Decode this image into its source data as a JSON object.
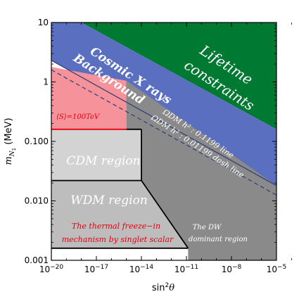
{
  "chart_data": {
    "type": "area",
    "xlabel": "sin²θ",
    "ylabel": "m_N1 (MeV)",
    "x_scale": "log",
    "y_scale": "log",
    "xlim": [
      1e-20,
      1e-05
    ],
    "ylim": [
      0.001,
      10
    ],
    "x_ticks": [
      {
        "value": 1e-20,
        "base": "10",
        "exp": "−20"
      },
      {
        "value": 1e-17,
        "base": "10",
        "exp": "−17"
      },
      {
        "value": 1e-14,
        "base": "10",
        "exp": "−14"
      },
      {
        "value": 1e-11,
        "base": "10",
        "exp": "−11"
      },
      {
        "value": 1e-08,
        "base": "10",
        "exp": "−8"
      },
      {
        "value": 1e-05,
        "base": "10",
        "exp": "−5"
      }
    ],
    "y_ticks": [
      {
        "value": 10,
        "label": "10"
      },
      {
        "value": 1,
        "label": "1"
      },
      {
        "value": 0.1,
        "label": "0.100"
      },
      {
        "value": 0.01,
        "label": "0.010"
      },
      {
        "value": 0.001,
        "label": "0.001"
      }
    ],
    "regions": [
      {
        "name": "Lifetime constraints",
        "color": "#007a33",
        "polygon": [
          [
            1e-18,
            10
          ],
          [
            1e-05,
            10
          ],
          [
            1e-05,
            0.16
          ]
        ]
      },
      {
        "name": "Cosmic X rays Background",
        "color": "#5a6fc0",
        "polygon": [
          [
            1e-20,
            10
          ],
          [
            1e-18,
            10
          ],
          [
            1e-05,
            0.16
          ],
          [
            1e-05,
            0.018
          ],
          [
            1e-20,
            2.3
          ]
        ]
      },
      {
        "name": "(S)=100TeV",
        "color": "#f5929a",
        "polygon": [
          [
            1e-20,
            0.16
          ],
          [
            1e-15,
            0.16
          ],
          [
            1e-15,
            1.05
          ],
          [
            1e-20,
            1.78
          ]
        ]
      },
      {
        "name": "CDM region",
        "color": "#d3d3d3",
        "polygon": [
          [
            1e-20,
            0.022
          ],
          [
            1e-14,
            0.022
          ],
          [
            1e-14,
            0.16
          ],
          [
            1e-20,
            0.16
          ]
        ]
      },
      {
        "name": "WDM region",
        "color": "#bdbdbd",
        "polygon": [
          [
            1e-20,
            0.0016
          ],
          [
            1.3e-11,
            0.0016
          ],
          [
            1e-14,
            0.022
          ],
          [
            1e-20,
            0.022
          ]
        ]
      },
      {
        "name": "The DW dominant region",
        "color": "#8a8a8a",
        "polygon": [
          [
            1.3e-11,
            0.0016
          ],
          [
            1e-14,
            0.022
          ],
          [
            1e-14,
            0.16
          ],
          [
            1e-15,
            0.16
          ],
          [
            1e-15,
            1.05
          ],
          [
            1e-05,
            0.018
          ],
          [
            1e-05,
            0.001
          ],
          [
            1.3e-11,
            0.001
          ]
        ]
      }
    ],
    "lines": [
      {
        "name": "Omega_DM h2 = 0.1199 line",
        "style": "solid",
        "points": [
          [
            1e-20,
            2.3
          ],
          [
            1e-05,
            0.018
          ]
        ]
      },
      {
        "name": "Omega_DM h2 = 0.01199 dash line",
        "style": "dashed",
        "points": [
          [
            1e-20,
            1.6
          ],
          [
            1e-05,
            0.0125
          ]
        ]
      }
    ],
    "boundaries": [
      {
        "name": "(S)=100TeV line",
        "color": "#e8000e",
        "points": [
          [
            1e-20,
            0.16
          ],
          [
            1e-15,
            0.16
          ]
        ]
      },
      {
        "name": "CDM upper",
        "color": "#000000",
        "points": [
          [
            1e-15,
            0.16
          ],
          [
            1e-14,
            0.16
          ]
        ]
      },
      {
        "name": "CDM/WDM boundary",
        "color": "#000000",
        "points": [
          [
            1e-20,
            0.022
          ],
          [
            1e-14,
            0.022
          ]
        ]
      },
      {
        "name": "freeze-in boundary",
        "color": "#000000",
        "points": [
          [
            1e-20,
            0.0016
          ],
          [
            1.3e-11,
            0.0016
          ]
        ]
      },
      {
        "name": "DW diagonal",
        "color": "#000000",
        "points": [
          [
            1.3e-11,
            0.0016
          ],
          [
            1e-14,
            0.022
          ],
          [
            1e-14,
            0.16
          ]
        ]
      }
    ],
    "annotations": {
      "lifetime_1": "Lifetime",
      "lifetime_2": "constraints",
      "cxb_1": "Cosmic X rays",
      "cxb_2": "Background",
      "omega_line": "ΩDM h² : 0.1199 line",
      "omega_dash": "ΩDM h² : 0.01199 dash line",
      "s100": "⟨S⟩=100TeV",
      "cdm": "CDM region",
      "wdm": "WDM region",
      "freezein_1": "The thermal freeze−in",
      "freezein_2": "mechanism by singlet scalar",
      "dw_1": "The DW",
      "dw_2": "dominant region"
    }
  }
}
